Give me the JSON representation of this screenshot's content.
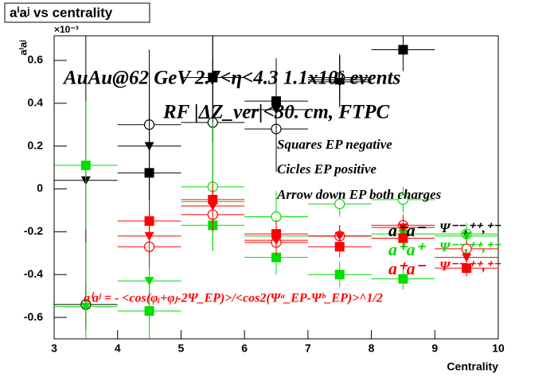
{
  "chart_data": {
    "type": "scatter",
    "title": "aⁱaʲ vs centrality",
    "x_label": "Centrality",
    "y_label": "aⁱaʲ",
    "y_exponent": "×10⁻³",
    "xlim": [
      3,
      10
    ],
    "ylim": [
      -0.7,
      0.715
    ],
    "xticks": [
      3,
      4,
      5,
      6,
      7,
      8,
      9,
      10
    ],
    "yticks": [
      -0.6,
      -0.4,
      -0.2,
      0,
      0.2,
      0.4,
      0.6
    ],
    "x": [
      3.5,
      4.5,
      5.5,
      6.5,
      7.5,
      8.5,
      9.5
    ],
    "xerr": 0.5,
    "series": [
      {
        "color": "#000000",
        "marker": "square",
        "values": [
          null,
          0.075,
          0.52,
          0.41,
          0.51,
          0.65,
          null
        ],
        "errors": [
          null,
          0.3,
          0.3,
          0.2,
          0.12,
          0.1,
          null
        ]
      },
      {
        "color": "#000000",
        "marker": "circle",
        "values": [
          -0.54,
          0.3,
          0.31,
          0.28,
          0.52,
          null,
          null
        ],
        "errors": [
          0.1,
          0.35,
          0.3,
          0.2,
          0.1,
          null,
          null
        ]
      },
      {
        "color": "#000000",
        "marker": "triangle",
        "values": [
          0.04,
          0.2,
          0.52,
          0.37,
          0.5,
          null,
          null
        ],
        "errors": [
          0.7,
          0.35,
          0.3,
          0.2,
          0.12,
          null,
          null
        ]
      },
      {
        "color": "#00dd00",
        "marker": "square",
        "values": [
          0.11,
          -0.57,
          -0.17,
          -0.32,
          -0.4,
          -0.42,
          null
        ],
        "errors": [
          0.3,
          0.2,
          0.12,
          0.08,
          0.06,
          0.05,
          null
        ]
      },
      {
        "color": "#00dd00",
        "marker": "circle",
        "values": [
          null,
          null,
          0.01,
          -0.13,
          -0.07,
          -0.05,
          -0.21
        ],
        "errors": [
          null,
          null,
          0.3,
          0.12,
          0.06,
          0.06,
          0.05
        ]
      },
      {
        "color": "#00dd00",
        "marker": "triangle",
        "values": [
          -0.55,
          -0.43,
          -0.06,
          -0.22,
          -0.22,
          -0.21,
          -0.22
        ],
        "errors": [
          0.3,
          0.2,
          0.12,
          0.08,
          0.05,
          0.05,
          0.04
        ]
      },
      {
        "color": "#ff0000",
        "marker": "square",
        "values": [
          null,
          -0.15,
          -0.05,
          -0.21,
          -0.27,
          -0.23,
          -0.37
        ],
        "errors": [
          null,
          0.1,
          0.08,
          0.06,
          0.05,
          0.05,
          0.04
        ]
      },
      {
        "color": "#ff0000",
        "marker": "circle",
        "values": [
          null,
          -0.27,
          -0.12,
          -0.25,
          -0.22,
          -0.17,
          -0.28
        ],
        "errors": [
          null,
          0.1,
          0.08,
          0.06,
          0.05,
          0.05,
          0.04
        ]
      },
      {
        "color": "#ff0000",
        "marker": "triangle",
        "values": [
          null,
          -0.22,
          -0.08,
          -0.24,
          -0.22,
          -0.18,
          -0.32
        ],
        "errors": [
          null,
          0.1,
          0.08,
          0.06,
          0.05,
          0.05,
          0.04
        ]
      }
    ],
    "annotations": [
      "AuAu@62 GeV 2.7<η<4.3 1.1x10⁶ events",
      "RF |ΔZ_ver|<30. cm, FTPC",
      "Squares EP negative",
      "Cicles EP positive",
      "Arrow down EP both charges",
      "aⁱaʲ = - <cos(φᵢ+φⱼ-2Ψ_EP)>/<cos2(Ψᵃ_EP-Ψᵇ_EP)>^1/2"
    ],
    "legend": [
      {
        "label": "a⁻a⁻",
        "psi": "Ψ⁻⁻,⁺⁺,⁺⁻",
        "color": "#000000"
      },
      {
        "label": "a⁺a⁺",
        "psi": "Ψ⁻⁻,⁺⁺,⁺⁻",
        "color": "#00dd00"
      },
      {
        "label": "a⁺a⁻",
        "psi": "Ψ⁻⁻,⁺⁺,⁺⁻",
        "color": "#ff0000"
      }
    ]
  }
}
